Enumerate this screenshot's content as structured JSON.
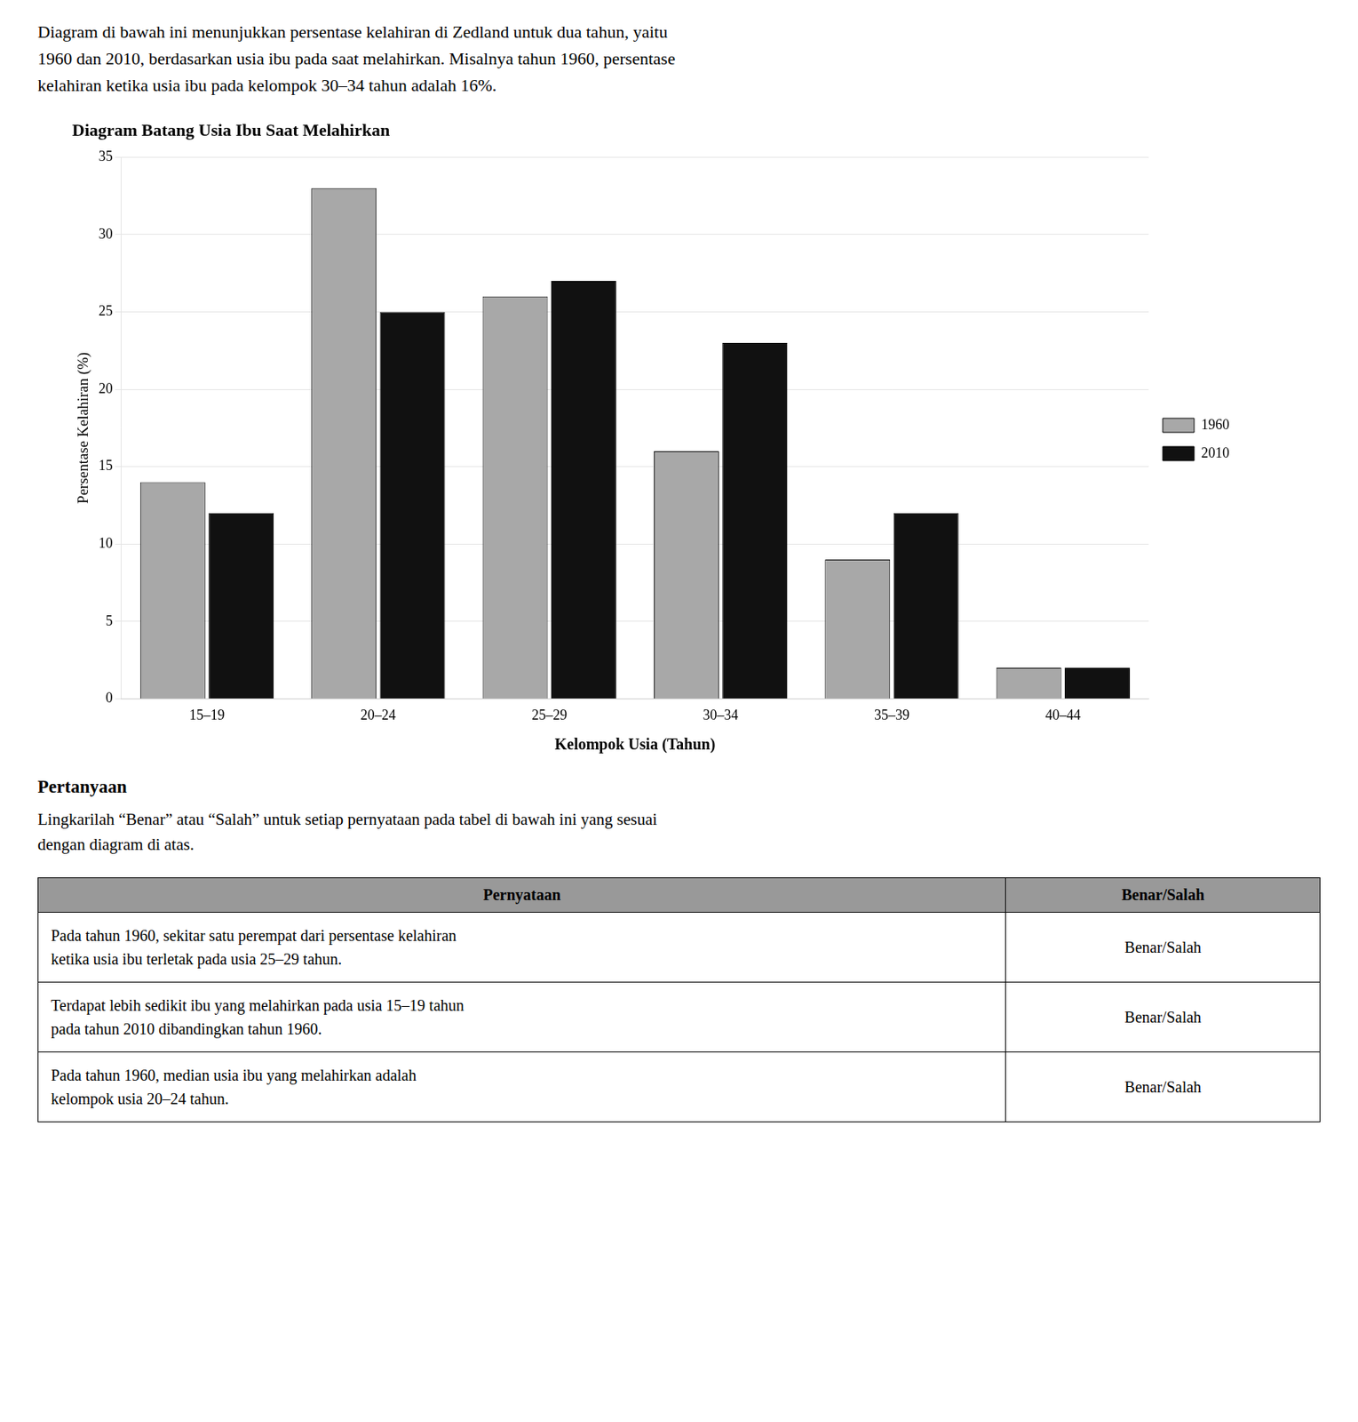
{
  "intro": [
    "Diagram di bawah ini menunjukkan persentase kelahiran di Zedland untuk dua tahun, yaitu",
    "1960 dan 2010, berdasarkan usia ibu pada saat melahirkan. Misalnya tahun 1960, persentase",
    "kelahiran ketika usia ibu pada kelompok 30–34 tahun adalah 16%."
  ],
  "chart_data": {
    "type": "bar",
    "title": "Diagram Batang Usia Ibu Saat Melahirkan",
    "categories": [
      "15–19",
      "20–24",
      "25–29",
      "30–34",
      "35–39",
      "40–44"
    ],
    "series": [
      {
        "name": "1960",
        "color": "#a8a8a8",
        "values": [
          14,
          33,
          26,
          16,
          9,
          2
        ]
      },
      {
        "name": "2010",
        "color": "#111111",
        "values": [
          12,
          25,
          27,
          23,
          12,
          2
        ]
      }
    ],
    "xlabel": "Kelompok Usia (Tahun)",
    "ylabel": "Persentase Kelahiran (%)",
    "ylim": [
      0,
      35
    ],
    "yticks": [
      0,
      5,
      10,
      15,
      20,
      25,
      30,
      35
    ],
    "grid": true,
    "legend": "right"
  },
  "section_title": "Pertanyaan",
  "section_intro": [
    "Lingkarilah “Benar” atau “Salah” untuk setiap pernyataan pada tabel di bawah ini yang sesuai",
    "dengan diagram di atas."
  ],
  "table": {
    "header": [
      "Pernyataan",
      "Benar/Salah"
    ],
    "rows": [
      [
        "Pada tahun 1960, sekitar satu perempat dari persentase kelahiran\nketika usia ibu terletak pada usia 25–29 tahun.",
        "Benar/Salah"
      ],
      [
        "Terdapat lebih sedikit ibu yang melahirkan pada usia 15–19 tahun\npada tahun 2010 dibandingkan tahun 1960.",
        "Benar/Salah"
      ],
      [
        "Pada tahun 1960, median usia ibu yang melahirkan adalah\nkelompok usia 20–24 tahun.",
        "Benar/Salah"
      ]
    ]
  }
}
